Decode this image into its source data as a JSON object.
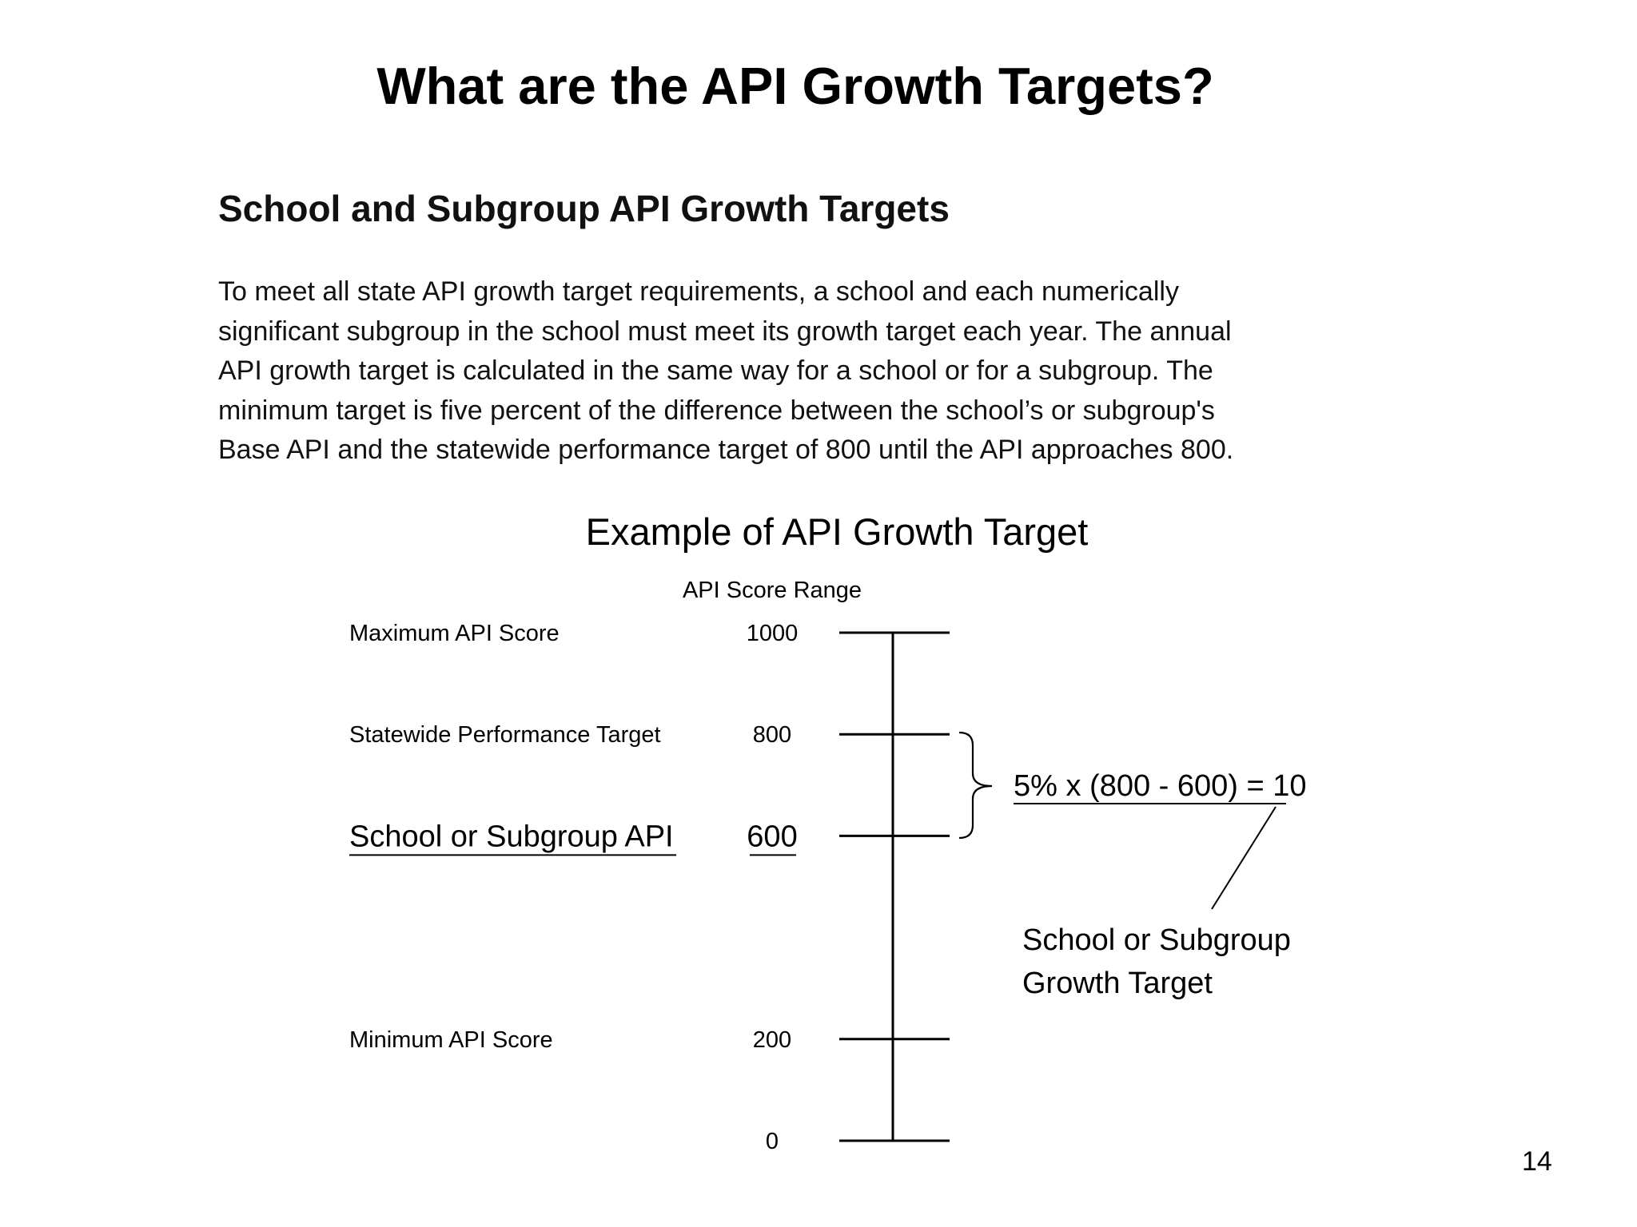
{
  "slide": {
    "title": "What are the API Growth Targets?",
    "page_number": "14"
  },
  "section": {
    "heading": "School and Subgroup API Growth Targets",
    "body_lines": [
      "To meet all state API growth target requirements, a school and each numerically",
      "significant subgroup in the school must meet its growth target each year. The annual",
      "API growth target is calculated in the same way for a school or for a subgroup. The",
      "minimum target is five percent of the difference between the school’s or subgroup's",
      "Base API and the statewide performance target of 800 until the API approaches 800."
    ]
  },
  "diagram": {
    "title": "Example of API Growth Target",
    "scale_header": "API Score Range",
    "scale_min": 0,
    "scale_max": 1000,
    "levels": [
      {
        "label": "Maximum API Score",
        "value": "1000",
        "score": 1000,
        "emphasis": false
      },
      {
        "label": "Statewide Performance Target",
        "value": "800",
        "score": 800,
        "emphasis": false
      },
      {
        "label": "School or Subgroup API",
        "value": "600",
        "score": 600,
        "emphasis": true
      },
      {
        "label": "Minimum API Score",
        "value": "200",
        "score": 200,
        "emphasis": false
      },
      {
        "label": "",
        "value": "0",
        "score": 0,
        "emphasis": false
      }
    ],
    "formula": "5% x (800 - 600) = 10",
    "callout_lines": [
      "School or Subgroup",
      "Growth Target"
    ]
  }
}
